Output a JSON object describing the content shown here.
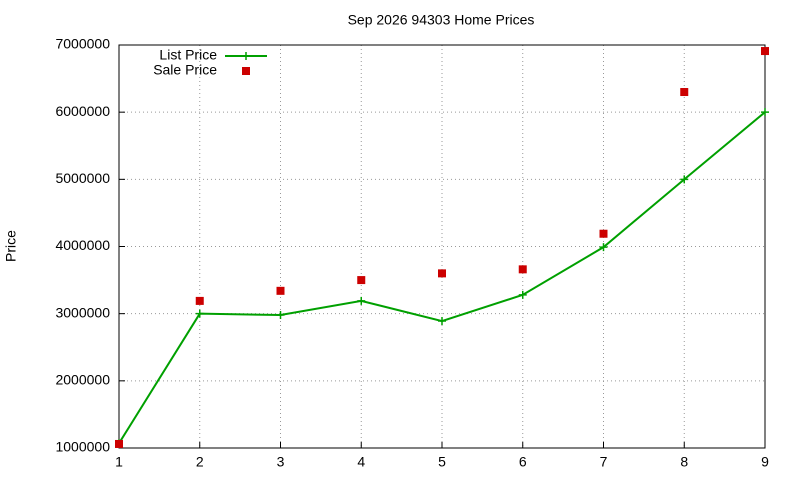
{
  "chart_data": {
    "type": "line",
    "title": "Sep 2026 94303 Home Prices",
    "ylabel": "Price",
    "x": [
      1,
      2,
      3,
      4,
      5,
      6,
      7,
      8,
      9
    ],
    "series": [
      {
        "name": "List Price",
        "color": "#00a000",
        "mode": "lines+markers",
        "values": [
          1070000,
          3000000,
          2980000,
          3190000,
          2890000,
          3280000,
          3990000,
          5000000,
          6000000
        ]
      },
      {
        "name": "Sale Price",
        "color": "#cc0000",
        "mode": "markers",
        "values": [
          1060000,
          3190000,
          3340000,
          3500000,
          3600000,
          3660000,
          4190000,
          6300000,
          6910000
        ]
      }
    ],
    "xlim": [
      1,
      9
    ],
    "xticks": [
      1,
      2,
      3,
      4,
      5,
      6,
      7,
      8,
      9
    ],
    "ylim": [
      1000000,
      7000000
    ],
    "yticks": [
      1000000,
      2000000,
      3000000,
      4000000,
      5000000,
      6000000,
      7000000
    ],
    "grid": true,
    "legend": "top-left"
  }
}
